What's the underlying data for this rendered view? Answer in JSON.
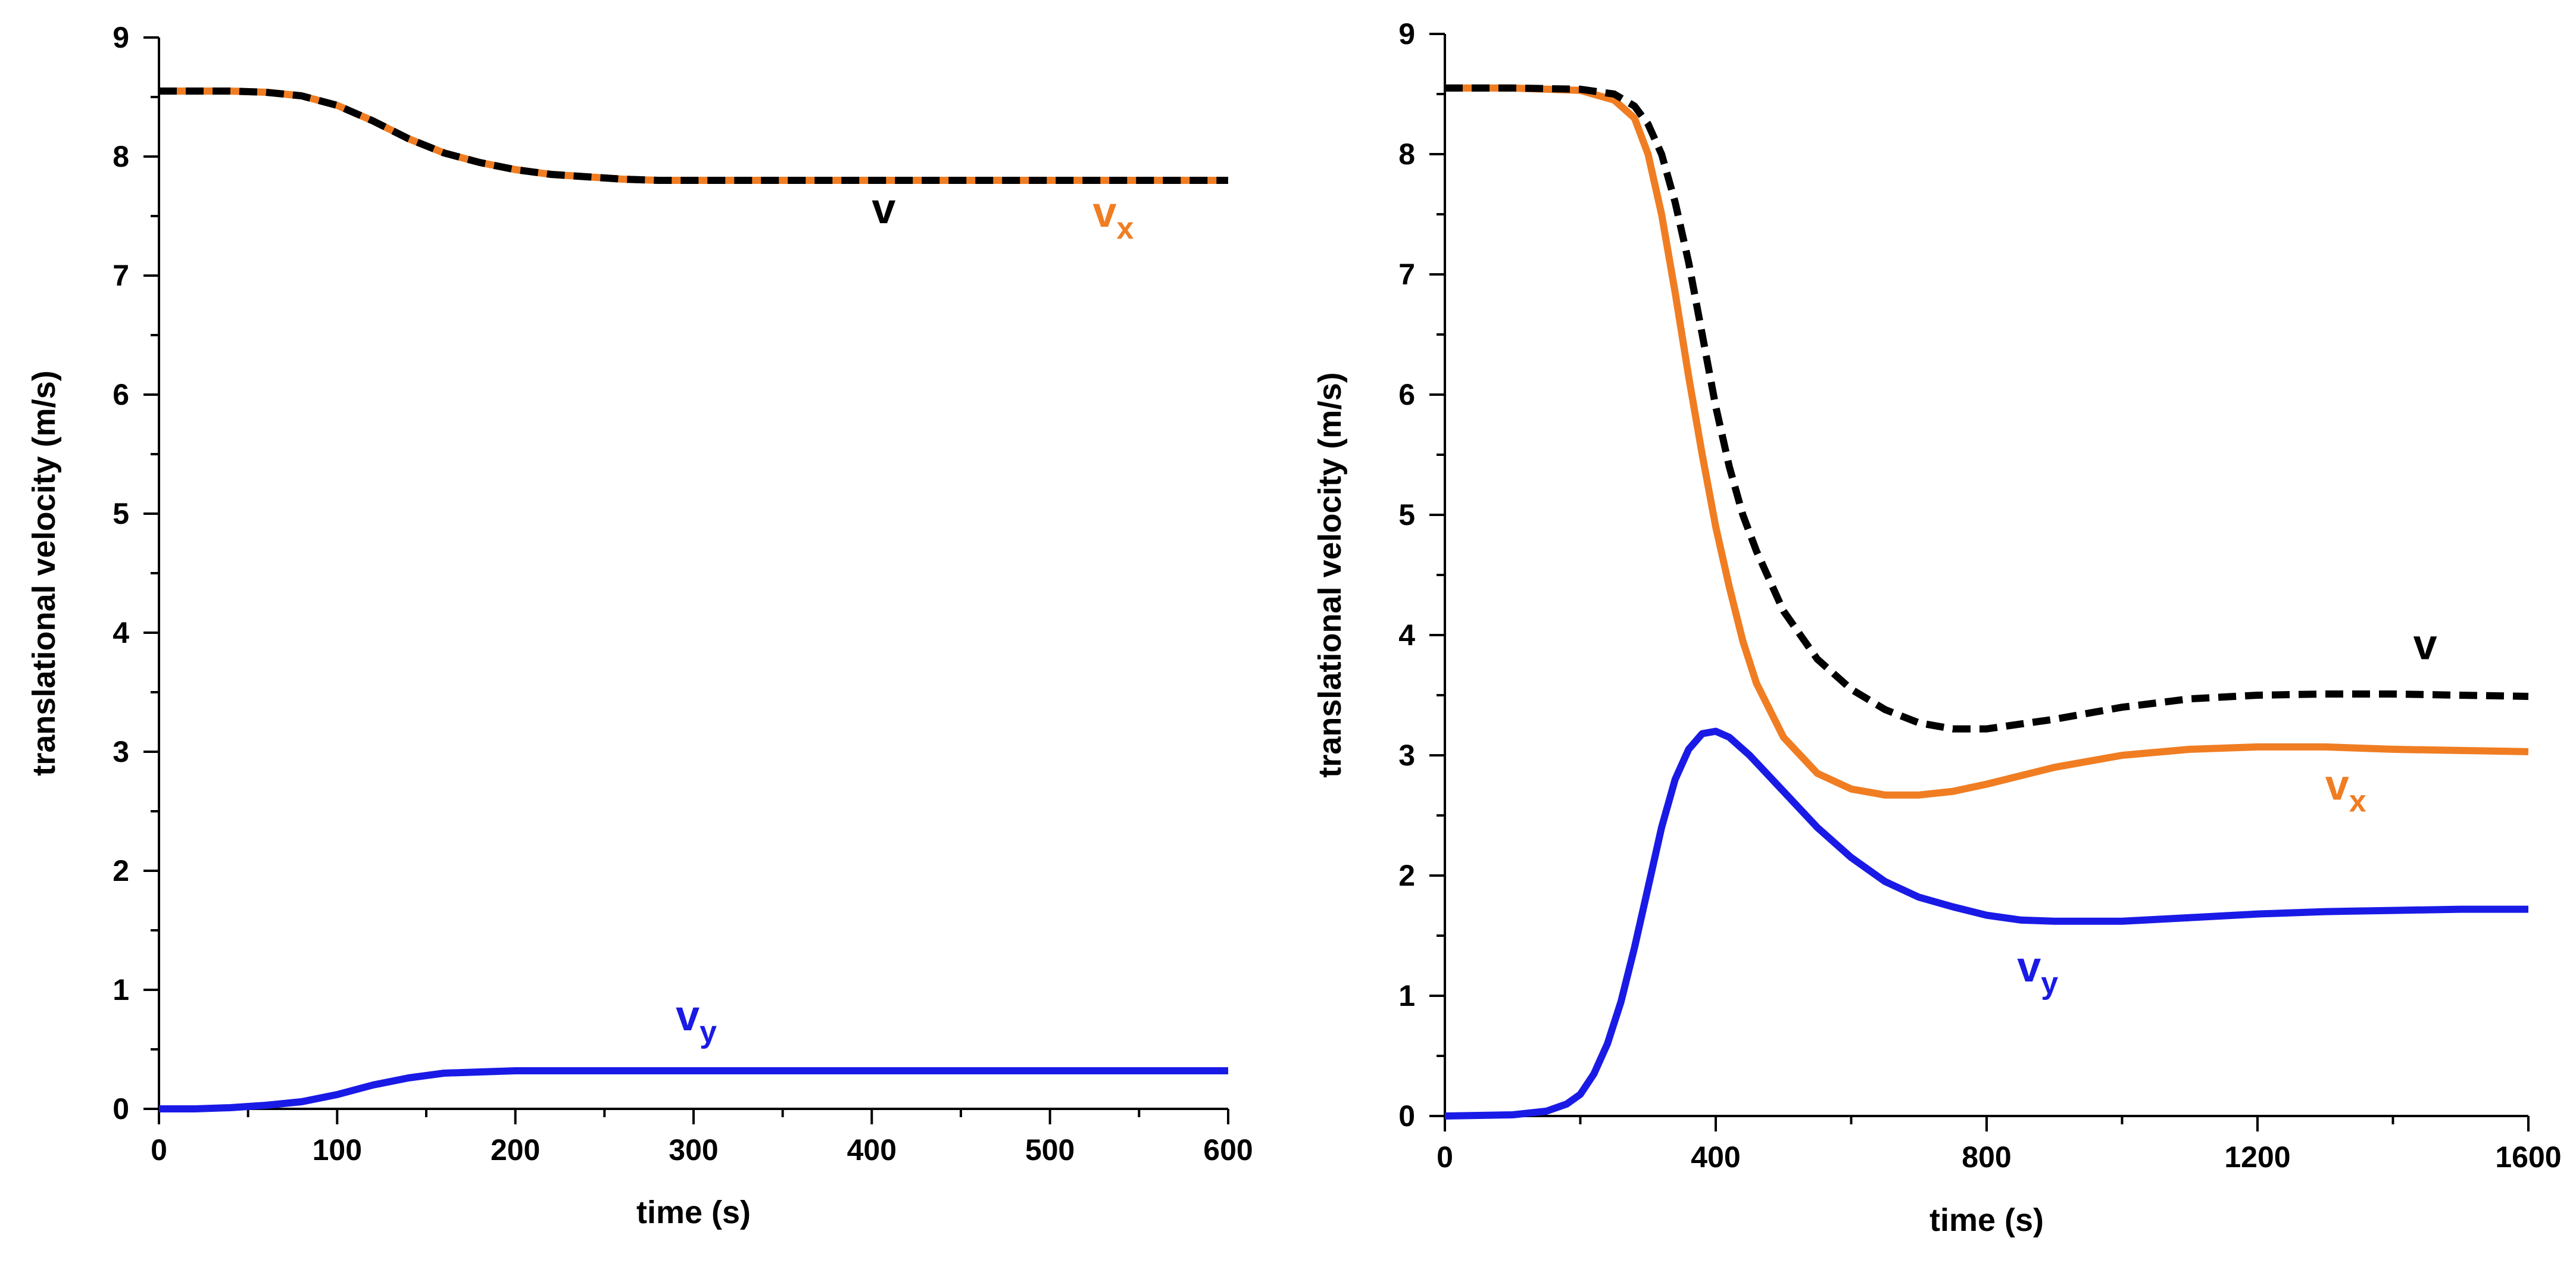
{
  "chart_data": [
    {
      "type": "line",
      "id": "left",
      "title": "",
      "xlabel": "time (s)",
      "ylabel": "translational velocity (m/s)",
      "xlim": [
        0,
        600
      ],
      "ylim": [
        0,
        9
      ],
      "x_ticks": [
        0,
        100,
        200,
        300,
        400,
        500,
        600
      ],
      "x_ticks_minor": [
        50,
        150,
        250,
        350,
        450,
        550
      ],
      "y_ticks": [
        0,
        1,
        2,
        3,
        4,
        5,
        6,
        7,
        8,
        9
      ],
      "y_ticks_minor": [
        0.5,
        1.5,
        2.5,
        3.5,
        4.5,
        5.5,
        6.5,
        7.5,
        8.5
      ],
      "grid": false,
      "series": [
        {
          "name": "v",
          "label_main": "v",
          "label_sub": "",
          "color": "#000000",
          "style": "dashed",
          "x": [
            0,
            20,
            40,
            60,
            80,
            100,
            120,
            140,
            160,
            180,
            200,
            220,
            240,
            260,
            280,
            300,
            350,
            400,
            450,
            500,
            550,
            600
          ],
          "y": [
            8.55,
            8.55,
            8.55,
            8.54,
            8.51,
            8.43,
            8.3,
            8.15,
            8.03,
            7.95,
            7.89,
            7.85,
            7.83,
            7.81,
            7.8,
            7.8,
            7.8,
            7.8,
            7.8,
            7.8,
            7.8,
            7.8
          ],
          "label_at": [
            400,
            7.44
          ]
        },
        {
          "name": "vx",
          "label_main": "v",
          "label_sub": "x",
          "color": "#f07d22",
          "style": "solid",
          "x": [
            0,
            20,
            40,
            60,
            80,
            100,
            120,
            140,
            160,
            180,
            200,
            220,
            240,
            260,
            280,
            300,
            350,
            400,
            450,
            500,
            550,
            600
          ],
          "y": [
            8.55,
            8.55,
            8.55,
            8.54,
            8.51,
            8.43,
            8.3,
            8.15,
            8.03,
            7.95,
            7.89,
            7.85,
            7.83,
            7.81,
            7.8,
            7.8,
            7.8,
            7.8,
            7.8,
            7.8,
            7.8,
            7.8
          ],
          "label_at": [
            524,
            7.41
          ]
        },
        {
          "name": "vy",
          "label_main": "v",
          "label_sub": "y",
          "color": "#1a1ae6",
          "style": "solid",
          "x": [
            0,
            20,
            40,
            60,
            80,
            100,
            120,
            140,
            160,
            180,
            200,
            250,
            300,
            400,
            500,
            600
          ],
          "y": [
            0.0,
            0.0,
            0.01,
            0.03,
            0.06,
            0.12,
            0.2,
            0.26,
            0.3,
            0.31,
            0.32,
            0.32,
            0.32,
            0.32,
            0.32,
            0.32
          ],
          "label_at": [
            290,
            0.66
          ]
        }
      ]
    },
    {
      "type": "line",
      "id": "right",
      "title": "",
      "xlabel": "time (s)",
      "ylabel": "translational velocity (m/s)",
      "xlim": [
        0,
        1600
      ],
      "ylim": [
        0,
        9
      ],
      "x_ticks": [
        0,
        400,
        800,
        1200,
        1600
      ],
      "x_ticks_minor": [
        200,
        600,
        1000,
        1400
      ],
      "y_ticks": [
        0,
        1,
        2,
        3,
        4,
        5,
        6,
        7,
        8,
        9
      ],
      "y_ticks_minor": [
        0.5,
        1.5,
        2.5,
        3.5,
        4.5,
        5.5,
        6.5,
        7.5,
        8.5
      ],
      "grid": false,
      "series": [
        {
          "name": "v",
          "label_main": "v",
          "label_sub": "",
          "color": "#000000",
          "style": "dashed",
          "x": [
            0,
            100,
            200,
            250,
            280,
            300,
            320,
            340,
            360,
            380,
            400,
            420,
            440,
            460,
            500,
            550,
            600,
            650,
            700,
            750,
            800,
            900,
            1000,
            1100,
            1200,
            1300,
            1400,
            1500,
            1600
          ],
          "y": [
            8.55,
            8.55,
            8.54,
            8.5,
            8.4,
            8.25,
            8.0,
            7.6,
            7.1,
            6.5,
            5.9,
            5.4,
            5.0,
            4.7,
            4.2,
            3.8,
            3.55,
            3.38,
            3.27,
            3.22,
            3.22,
            3.3,
            3.4,
            3.47,
            3.5,
            3.51,
            3.51,
            3.5,
            3.49
          ],
          "label_at": [
            1430,
            3.8
          ]
        },
        {
          "name": "vx",
          "label_main": "v",
          "label_sub": "x",
          "color": "#f07d22",
          "style": "solid",
          "x": [
            0,
            100,
            200,
            250,
            280,
            300,
            320,
            340,
            360,
            380,
            400,
            420,
            440,
            460,
            500,
            550,
            600,
            650,
            700,
            750,
            800,
            900,
            1000,
            1100,
            1200,
            1300,
            1400,
            1500,
            1600
          ],
          "y": [
            8.55,
            8.55,
            8.53,
            8.45,
            8.3,
            8.0,
            7.5,
            6.85,
            6.15,
            5.5,
            4.9,
            4.4,
            3.95,
            3.6,
            3.15,
            2.85,
            2.72,
            2.67,
            2.67,
            2.7,
            2.76,
            2.9,
            3.0,
            3.05,
            3.07,
            3.07,
            3.05,
            3.04,
            3.03
          ],
          "label_at": [
            1300,
            2.63
          ]
        },
        {
          "name": "vy",
          "label_main": "v",
          "label_sub": "y",
          "color": "#1a1ae6",
          "style": "solid",
          "x": [
            0,
            100,
            150,
            180,
            200,
            220,
            240,
            260,
            280,
            300,
            320,
            340,
            360,
            380,
            400,
            420,
            450,
            500,
            550,
            600,
            650,
            700,
            750,
            800,
            850,
            900,
            1000,
            1100,
            1200,
            1300,
            1400,
            1500,
            1600
          ],
          "y": [
            0.0,
            0.01,
            0.04,
            0.1,
            0.18,
            0.35,
            0.6,
            0.95,
            1.4,
            1.9,
            2.4,
            2.8,
            3.05,
            3.18,
            3.2,
            3.15,
            3.0,
            2.7,
            2.4,
            2.15,
            1.95,
            1.82,
            1.74,
            1.67,
            1.63,
            1.62,
            1.62,
            1.65,
            1.68,
            1.7,
            1.71,
            1.72,
            1.72
          ],
          "label_at": [
            845,
            1.12
          ]
        }
      ]
    }
  ]
}
